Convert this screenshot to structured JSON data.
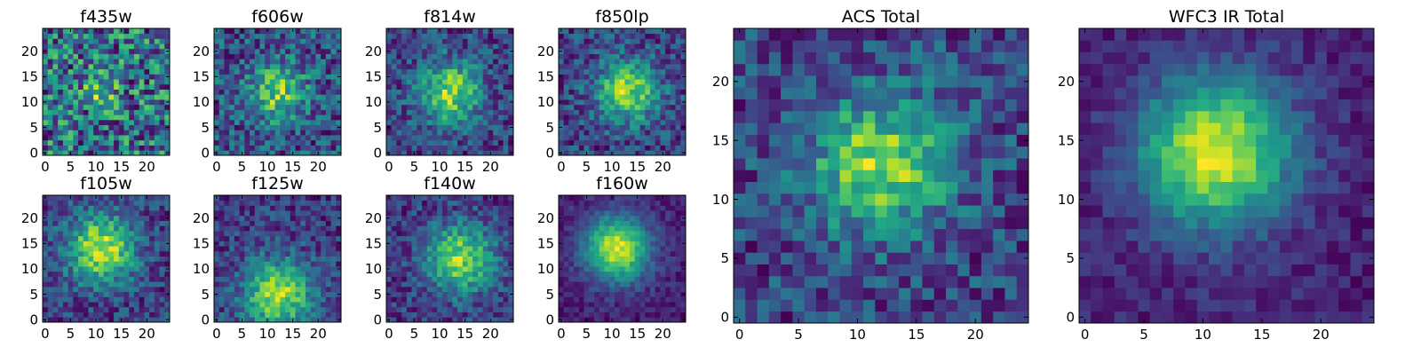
{
  "chart_data": [
    {
      "type": "heatmap",
      "title": "f435w",
      "xlim": [
        0,
        24
      ],
      "ylim": [
        0,
        24
      ],
      "xticks": [
        0,
        5,
        10,
        15,
        20
      ],
      "yticks": [
        0,
        5,
        10,
        15,
        20
      ],
      "xtick_labels": [
        "0",
        "5",
        "10",
        "15",
        "20"
      ],
      "ytick_labels": [
        "0",
        "5",
        "10",
        "15",
        "20"
      ],
      "colormap": "viridis",
      "grid_size": 25,
      "pattern": "noise",
      "peak": [
        11,
        12
      ]
    },
    {
      "type": "heatmap",
      "title": "f606w",
      "xlim": [
        0,
        24
      ],
      "ylim": [
        0,
        24
      ],
      "xticks": [
        0,
        5,
        10,
        15,
        20
      ],
      "yticks": [
        0,
        5,
        10,
        15,
        20
      ],
      "xtick_labels": [
        "0",
        "5",
        "10",
        "15",
        "20"
      ],
      "ytick_labels": [
        "0",
        "5",
        "10",
        "15",
        "20"
      ],
      "colormap": "viridis",
      "grid_size": 25,
      "pattern": "faint-source",
      "peak": [
        12,
        12
      ]
    },
    {
      "type": "heatmap",
      "title": "f814w",
      "xlim": [
        0,
        24
      ],
      "ylim": [
        0,
        24
      ],
      "xticks": [
        0,
        5,
        10,
        15,
        20
      ],
      "yticks": [
        0,
        5,
        10,
        15,
        20
      ],
      "xtick_labels": [
        "0",
        "5",
        "10",
        "15",
        "20"
      ],
      "ytick_labels": [
        "0",
        "5",
        "10",
        "15",
        "20"
      ],
      "colormap": "viridis",
      "grid_size": 25,
      "pattern": "source",
      "peak": [
        12,
        12
      ]
    },
    {
      "type": "heatmap",
      "title": "f850lp",
      "xlim": [
        0,
        24
      ],
      "ylim": [
        0,
        24
      ],
      "xticks": [
        0,
        5,
        10,
        15,
        20
      ],
      "yticks": [
        0,
        5,
        10,
        15,
        20
      ],
      "xtick_labels": [
        "0",
        "5",
        "10",
        "15",
        "20"
      ],
      "ytick_labels": [
        "0",
        "5",
        "10",
        "15",
        "20"
      ],
      "colormap": "viridis",
      "grid_size": 25,
      "pattern": "source",
      "peak": [
        13,
        12
      ]
    },
    {
      "type": "heatmap",
      "title": "f105w",
      "xlim": [
        0,
        24
      ],
      "ylim": [
        0,
        24
      ],
      "xticks": [
        0,
        5,
        10,
        15,
        20
      ],
      "yticks": [
        0,
        5,
        10,
        15,
        20
      ],
      "xtick_labels": [
        "0",
        "5",
        "10",
        "15",
        "20"
      ],
      "ytick_labels": [
        "0",
        "5",
        "10",
        "15",
        "20"
      ],
      "colormap": "viridis",
      "grid_size": 25,
      "pattern": "extended",
      "peak": [
        11,
        14
      ]
    },
    {
      "type": "heatmap",
      "title": "f125w",
      "xlim": [
        0,
        24
      ],
      "ylim": [
        0,
        24
      ],
      "xticks": [
        0,
        5,
        10,
        15,
        20
      ],
      "yticks": [
        0,
        5,
        10,
        15,
        20
      ],
      "xtick_labels": [
        "0",
        "5",
        "10",
        "15",
        "20"
      ],
      "ytick_labels": [
        "0",
        "5",
        "10",
        "15",
        "20"
      ],
      "colormap": "viridis",
      "grid_size": 25,
      "pattern": "extended",
      "peak": [
        12,
        5
      ]
    },
    {
      "type": "heatmap",
      "title": "f140w",
      "xlim": [
        0,
        24
      ],
      "ylim": [
        0,
        24
      ],
      "xticks": [
        0,
        5,
        10,
        15,
        20
      ],
      "yticks": [
        0,
        5,
        10,
        15,
        20
      ],
      "xtick_labels": [
        "0",
        "5",
        "10",
        "15",
        "20"
      ],
      "ytick_labels": [
        "0",
        "5",
        "10",
        "15",
        "20"
      ],
      "colormap": "viridis",
      "grid_size": 25,
      "pattern": "extended",
      "peak": [
        14,
        12
      ]
    },
    {
      "type": "heatmap",
      "title": "f160w",
      "xlim": [
        0,
        24
      ],
      "ylim": [
        0,
        24
      ],
      "xticks": [
        0,
        5,
        10,
        15,
        20
      ],
      "yticks": [
        0,
        5,
        10,
        15,
        20
      ],
      "xtick_labels": [
        "0",
        "5",
        "10",
        "15",
        "20"
      ],
      "ytick_labels": [
        "0",
        "5",
        "10",
        "15",
        "20"
      ],
      "colormap": "viridis",
      "grid_size": 25,
      "pattern": "smooth-source",
      "peak": [
        11,
        14
      ]
    },
    {
      "type": "heatmap",
      "title": "ACS Total",
      "xlim": [
        0,
        24
      ],
      "ylim": [
        0,
        24
      ],
      "xticks": [
        0,
        5,
        10,
        15,
        20
      ],
      "yticks": [
        0,
        5,
        10,
        15,
        20
      ],
      "xtick_labels": [
        "0",
        "5",
        "10",
        "15",
        "20"
      ],
      "ytick_labels": [
        "0",
        "5",
        "10",
        "15",
        "20"
      ],
      "colormap": "viridis",
      "grid_size": 25,
      "pattern": "source",
      "peak": [
        12,
        13
      ]
    },
    {
      "type": "heatmap",
      "title": "WFC3 IR Total",
      "xlim": [
        0,
        24
      ],
      "ylim": [
        0,
        24
      ],
      "xticks": [
        0,
        5,
        10,
        15,
        20
      ],
      "yticks": [
        0,
        5,
        10,
        15,
        20
      ],
      "xtick_labels": [
        "0",
        "5",
        "10",
        "15",
        "20"
      ],
      "ytick_labels": [
        "0",
        "5",
        "10",
        "15",
        "20"
      ],
      "colormap": "viridis",
      "grid_size": 25,
      "pattern": "smooth-source",
      "peak": [
        11,
        14
      ]
    }
  ]
}
